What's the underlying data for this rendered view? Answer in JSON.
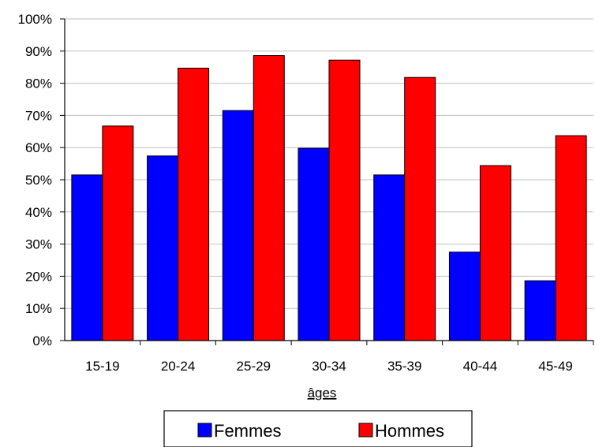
{
  "chart_data": {
    "type": "bar",
    "title": "",
    "xlabel": "âges",
    "ylabel": "",
    "categories": [
      "15-19",
      "20-24",
      "25-29",
      "30-34",
      "35-39",
      "40-44",
      "45-49"
    ],
    "series": [
      {
        "name": "Femmes",
        "color": "#0000ff",
        "values": [
          51.5,
          57.4,
          71.5,
          59.8,
          51.5,
          27.5,
          18.6
        ]
      },
      {
        "name": "Hommes",
        "color": "#ff0000",
        "values": [
          66.7,
          84.7,
          88.6,
          87.2,
          81.8,
          54.4,
          63.7
        ]
      }
    ],
    "ylim": [
      0,
      100
    ],
    "yticks": [
      0,
      10,
      20,
      30,
      40,
      50,
      60,
      70,
      80,
      90,
      100
    ],
    "ytick_labels": [
      "0%",
      "10%",
      "20%",
      "30%",
      "40%",
      "50%",
      "60%",
      "70%",
      "80%",
      "90%",
      "100%"
    ],
    "grid": true,
    "legend_position": "bottom"
  }
}
